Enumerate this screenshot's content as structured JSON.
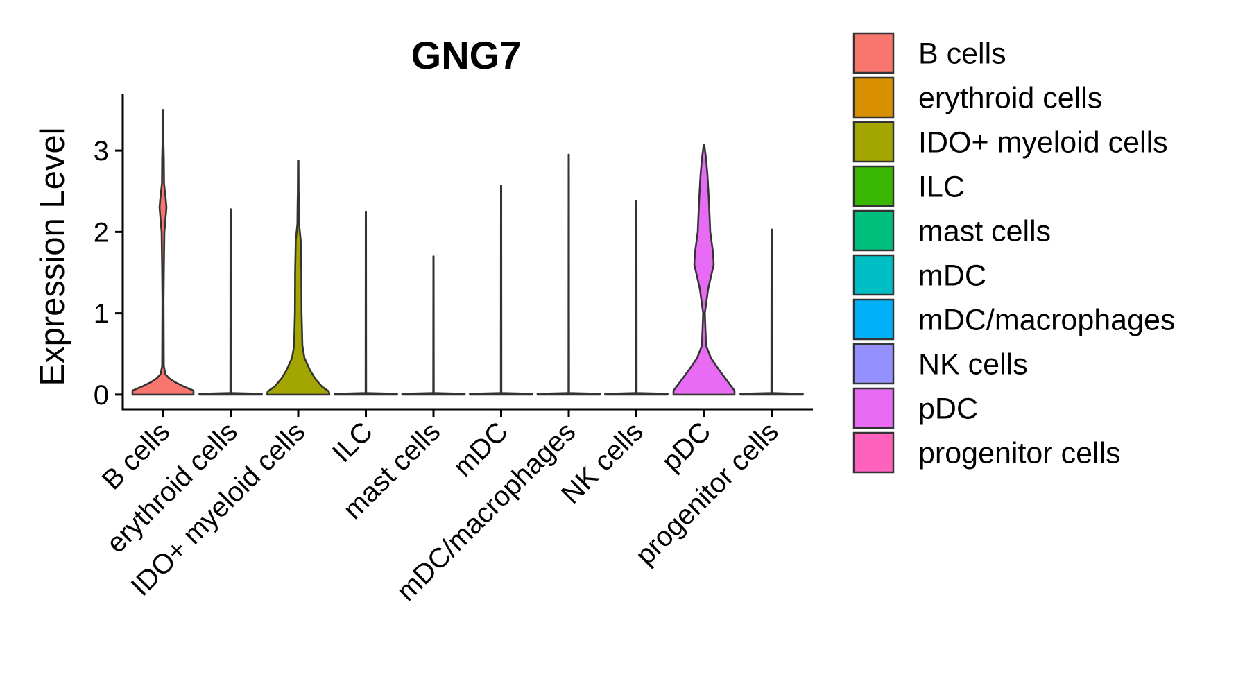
{
  "chart_data": {
    "type": "violin",
    "title": "GNG7",
    "xlabel": "",
    "ylabel": "Expression Level",
    "ylim": [
      -0.18,
      3.7
    ],
    "yticks": [
      0,
      1,
      2,
      3
    ],
    "legend_position": "right",
    "categories": [
      "B cells",
      "erythroid cells",
      "IDO+ myeloid cells",
      "ILC",
      "mast cells",
      "mDC",
      "mDC/macrophages",
      "NK cells",
      "pDC",
      "progenitor cells"
    ],
    "colors": [
      "#F8766D",
      "#D89000",
      "#A3A500",
      "#39B600",
      "#00BF7D",
      "#00BFC4",
      "#00B0F6",
      "#9590FF",
      "#E76BF3",
      "#FF62BC"
    ],
    "series": [
      {
        "name": "B cells",
        "max": 3.5,
        "profile": [
          [
            0,
            0.44
          ],
          [
            0.05,
            0.44
          ],
          [
            0.1,
            0.3
          ],
          [
            0.15,
            0.18
          ],
          [
            0.2,
            0.09
          ],
          [
            0.25,
            0.035
          ],
          [
            0.35,
            0.012
          ],
          [
            1.15,
            0.008
          ],
          [
            1.5,
            0.012
          ],
          [
            2.0,
            0.02
          ],
          [
            2.2,
            0.04
          ],
          [
            2.3,
            0.05
          ],
          [
            2.4,
            0.04
          ],
          [
            2.6,
            0.015
          ],
          [
            2.9,
            0.012
          ],
          [
            3.2,
            0.004
          ],
          [
            3.5,
            0.002
          ]
        ]
      },
      {
        "name": "erythroid cells",
        "max": 2.28,
        "profile": [
          [
            0,
            0.45
          ],
          [
            0.01,
            0.45
          ],
          [
            0.02,
            0.004
          ],
          [
            2.28,
            0.002
          ]
        ]
      },
      {
        "name": "IDO+ myeloid cells",
        "max": 2.88,
        "profile": [
          [
            0,
            0.45
          ],
          [
            0.04,
            0.44
          ],
          [
            0.1,
            0.34
          ],
          [
            0.2,
            0.24
          ],
          [
            0.3,
            0.17
          ],
          [
            0.45,
            0.09
          ],
          [
            0.6,
            0.06
          ],
          [
            1.0,
            0.048
          ],
          [
            1.5,
            0.045
          ],
          [
            1.9,
            0.036
          ],
          [
            2.1,
            0.012
          ],
          [
            2.3,
            0.01
          ],
          [
            2.5,
            0.006
          ],
          [
            2.88,
            0.004
          ]
        ]
      },
      {
        "name": "ILC",
        "max": 2.25,
        "profile": [
          [
            0,
            0.45
          ],
          [
            0.01,
            0.45
          ],
          [
            0.02,
            0.004
          ],
          [
            2.25,
            0.002
          ]
        ]
      },
      {
        "name": "mast cells",
        "max": 1.7,
        "profile": [
          [
            0,
            0.45
          ],
          [
            0.01,
            0.45
          ],
          [
            0.02,
            0.004
          ],
          [
            1.7,
            0.002
          ]
        ]
      },
      {
        "name": "mDC",
        "max": 2.57,
        "profile": [
          [
            0,
            0.45
          ],
          [
            0.01,
            0.45
          ],
          [
            0.02,
            0.004
          ],
          [
            2.57,
            0.002
          ]
        ]
      },
      {
        "name": "mDC/macrophages",
        "max": 2.95,
        "profile": [
          [
            0,
            0.45
          ],
          [
            0.01,
            0.45
          ],
          [
            0.02,
            0.004
          ],
          [
            2.95,
            0.002
          ]
        ]
      },
      {
        "name": "NK cells",
        "max": 2.38,
        "profile": [
          [
            0,
            0.45
          ],
          [
            0.01,
            0.45
          ],
          [
            0.02,
            0.004
          ],
          [
            2.38,
            0.002
          ]
        ]
      },
      {
        "name": "pDC",
        "max": 3.07,
        "profile": [
          [
            0,
            0.44
          ],
          [
            0.05,
            0.44
          ],
          [
            0.15,
            0.35
          ],
          [
            0.3,
            0.22
          ],
          [
            0.45,
            0.1
          ],
          [
            0.6,
            0.03
          ],
          [
            1.0,
            0.012
          ],
          [
            1.3,
            0.06
          ],
          [
            1.6,
            0.14
          ],
          [
            1.75,
            0.13
          ],
          [
            2.0,
            0.09
          ],
          [
            2.4,
            0.07
          ],
          [
            2.7,
            0.05
          ],
          [
            2.9,
            0.03
          ],
          [
            3.07,
            0.004
          ]
        ]
      },
      {
        "name": "progenitor cells",
        "max": 2.03,
        "profile": [
          [
            0,
            0.45
          ],
          [
            0.01,
            0.45
          ],
          [
            0.02,
            0.004
          ],
          [
            2.03,
            0.002
          ]
        ]
      }
    ]
  }
}
